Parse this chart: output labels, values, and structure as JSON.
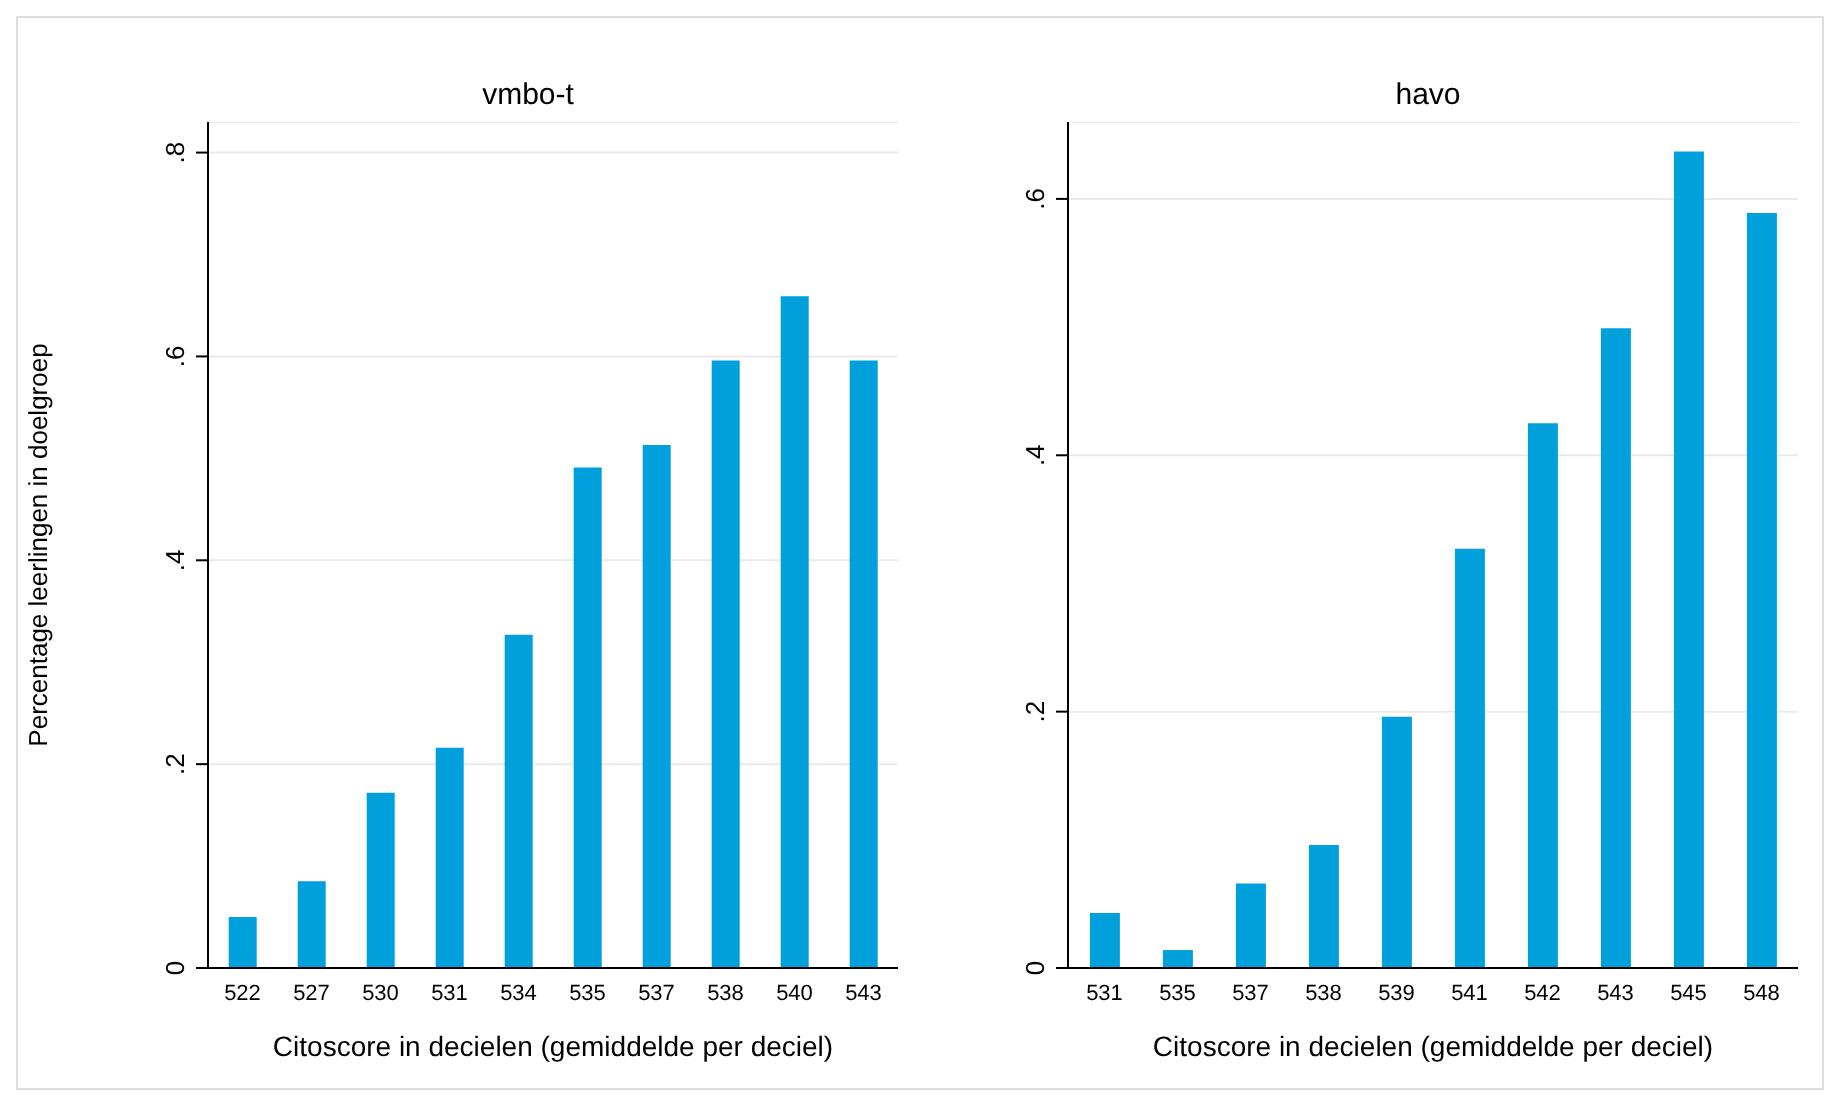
{
  "chart_data": [
    {
      "type": "bar",
      "title": "vmbo-t",
      "xlabel": "Citoscore in decielen (gemiddelde per deciel)",
      "ylabel": "Percentage leerlingen in doelgroep",
      "categories": [
        "522",
        "527",
        "530",
        "531",
        "534",
        "535",
        "537",
        "538",
        "540",
        "543"
      ],
      "values": [
        0.05,
        0.085,
        0.172,
        0.216,
        0.327,
        0.491,
        0.513,
        0.596,
        0.659,
        0.596
      ],
      "color": "#00a0dc",
      "ylim": [
        0,
        0.83
      ],
      "yticks": [
        {
          "value": 0,
          "label": "0"
        },
        {
          "value": 0.2,
          "label": ".2"
        },
        {
          "value": 0.4,
          "label": ".4"
        },
        {
          "value": 0.6,
          "label": ".6"
        },
        {
          "value": 0.8,
          "label": ".8"
        }
      ],
      "grid": "y"
    },
    {
      "type": "bar",
      "title": "havo",
      "xlabel": "Citoscore in decielen (gemiddelde per deciel)",
      "categories": [
        "531",
        "535",
        "537",
        "538",
        "539",
        "541",
        "542",
        "543",
        "545",
        "548"
      ],
      "values": [
        0.043,
        0.014,
        0.066,
        0.096,
        0.196,
        0.327,
        0.425,
        0.499,
        0.637,
        0.589
      ],
      "color": "#00a0dc",
      "ylim": [
        0,
        0.66
      ],
      "yticks": [
        {
          "value": 0,
          "label": "0"
        },
        {
          "value": 0.2,
          "label": ".2"
        },
        {
          "value": 0.4,
          "label": ".4"
        },
        {
          "value": 0.6,
          "label": ".6"
        }
      ],
      "grid": "y"
    }
  ]
}
